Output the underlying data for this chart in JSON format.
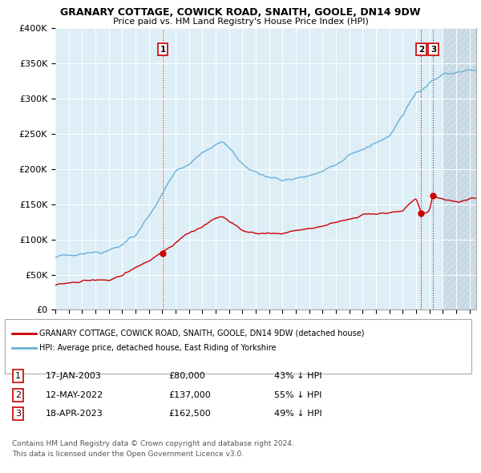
{
  "title": "GRANARY COTTAGE, COWICK ROAD, SNAITH, GOOLE, DN14 9DW",
  "subtitle": "Price paid vs. HM Land Registry's House Price Index (HPI)",
  "ylim": [
    0,
    400000
  ],
  "yticks": [
    0,
    50000,
    100000,
    150000,
    200000,
    250000,
    300000,
    350000,
    400000
  ],
  "hpi_color": "#6ab0d8",
  "price_color": "#cc0000",
  "plot_bg": "#ddeeff",
  "hatch_bg": "#c8d8e8",
  "grid_color": "#ffffff",
  "transactions": [
    {
      "label": "1",
      "date": "17-JAN-2003",
      "price": 80000,
      "pct": "43% ↓ HPI",
      "x_year": 2003.04
    },
    {
      "label": "2",
      "date": "12-MAY-2022",
      "price": 137000,
      "pct": "55% ↓ HPI",
      "x_year": 2022.38
    },
    {
      "label": "3",
      "date": "18-APR-2023",
      "price": 162500,
      "pct": "49% ↓ HPI",
      "x_year": 2023.29
    }
  ],
  "legend_line1": "GRANARY COTTAGE, COWICK ROAD, SNAITH, GOOLE, DN14 9DW (detached house)",
  "legend_line2": "HPI: Average price, detached house, East Riding of Yorkshire",
  "footer1": "Contains HM Land Registry data © Crown copyright and database right 2024.",
  "footer2": "This data is licensed under the Open Government Licence v3.0.",
  "xmin": 1995.0,
  "xmax": 2026.5,
  "hatch_start": 2024.0
}
